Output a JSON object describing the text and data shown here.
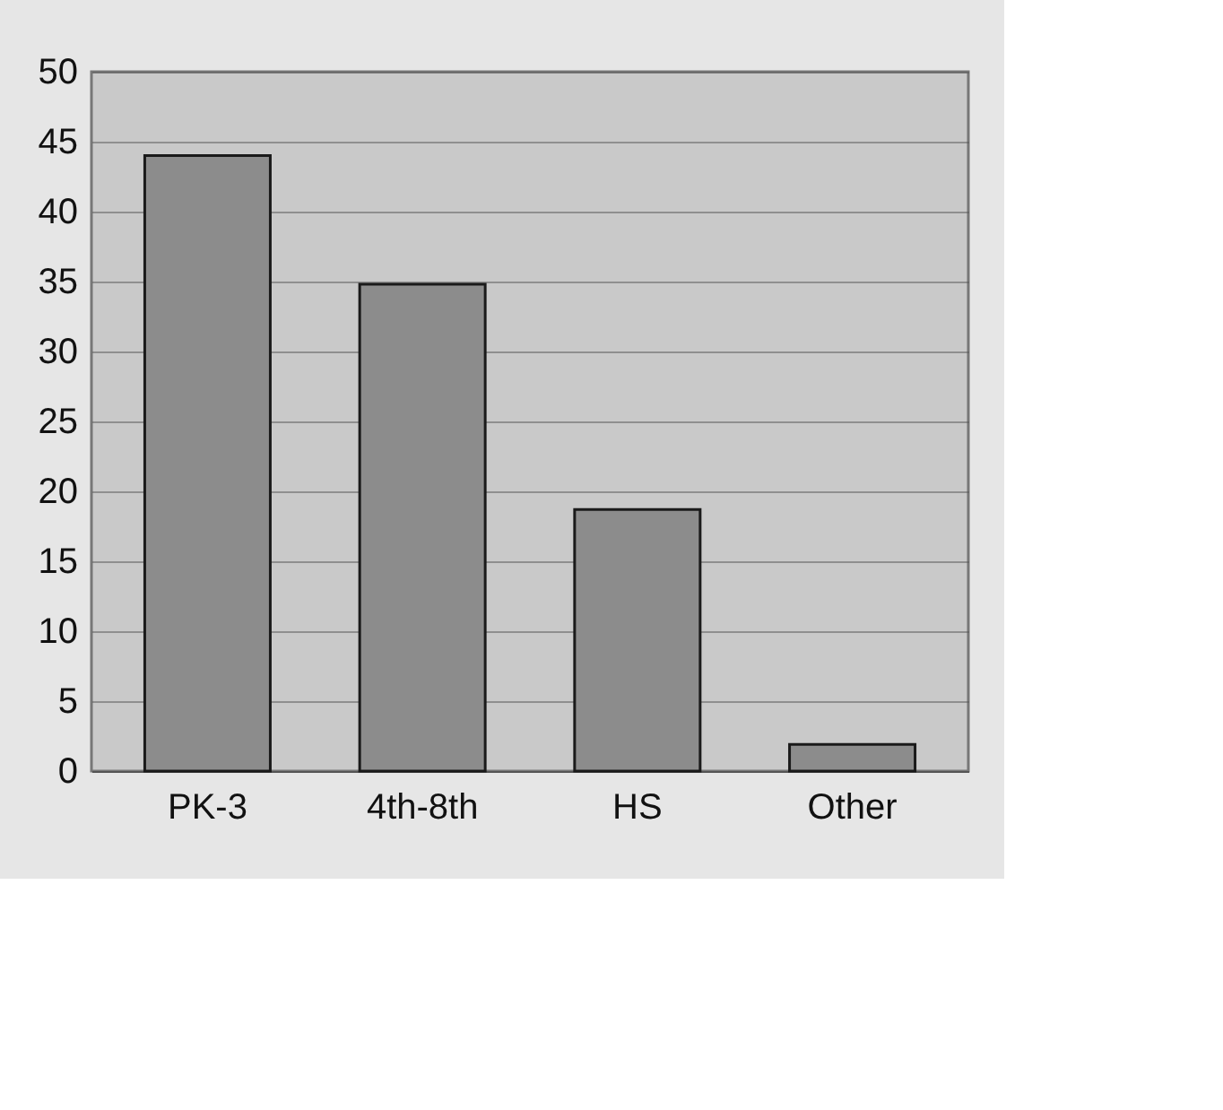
{
  "chart_data": {
    "type": "bar",
    "categories": [
      "PK-3",
      "4th-8th",
      "HS",
      "Other"
    ],
    "values": [
      44,
      34.8,
      18.7,
      1.9
    ],
    "color": "#8c8c8c",
    "ylim": [
      0,
      50
    ],
    "yticks": [
      0,
      5,
      10,
      15,
      20,
      25,
      30,
      35,
      40,
      45,
      50
    ],
    "grid": "y"
  }
}
